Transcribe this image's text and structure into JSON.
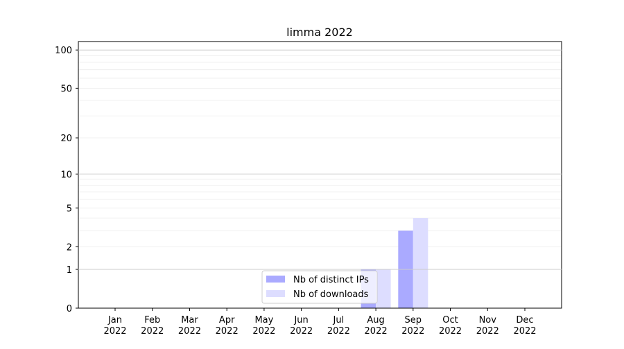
{
  "chart_data": {
    "type": "bar",
    "title": "limma 2022",
    "xlabel": "",
    "ylabel": "",
    "yscale": "log(1+y)",
    "ylim": [
      0,
      116
    ],
    "yticks": [
      0,
      1,
      2,
      5,
      10,
      20,
      50,
      100
    ],
    "ytick_labels": [
      "0",
      "1",
      "2",
      "5",
      "10",
      "20",
      "50",
      "100"
    ],
    "grid": true,
    "legend_position": "bottom-center",
    "categories": [
      "Jan\n2022",
      "Feb\n2022",
      "Mar\n2022",
      "Apr\n2022",
      "May\n2022",
      "Jun\n2022",
      "Jul\n2022",
      "Aug\n2022",
      "Sep\n2022",
      "Oct\n2022",
      "Nov\n2022",
      "Dec\n2022"
    ],
    "series": [
      {
        "name": "Nb of distinct IPs",
        "color": "#aaaaff",
        "values": [
          0,
          0,
          0,
          0,
          0,
          0,
          0,
          1,
          3,
          0,
          0,
          0
        ]
      },
      {
        "name": "Nb of downloads",
        "color": "#ddddff",
        "values": [
          0,
          0,
          0,
          0,
          0,
          0,
          0,
          1,
          4,
          0,
          0,
          0
        ]
      }
    ]
  }
}
